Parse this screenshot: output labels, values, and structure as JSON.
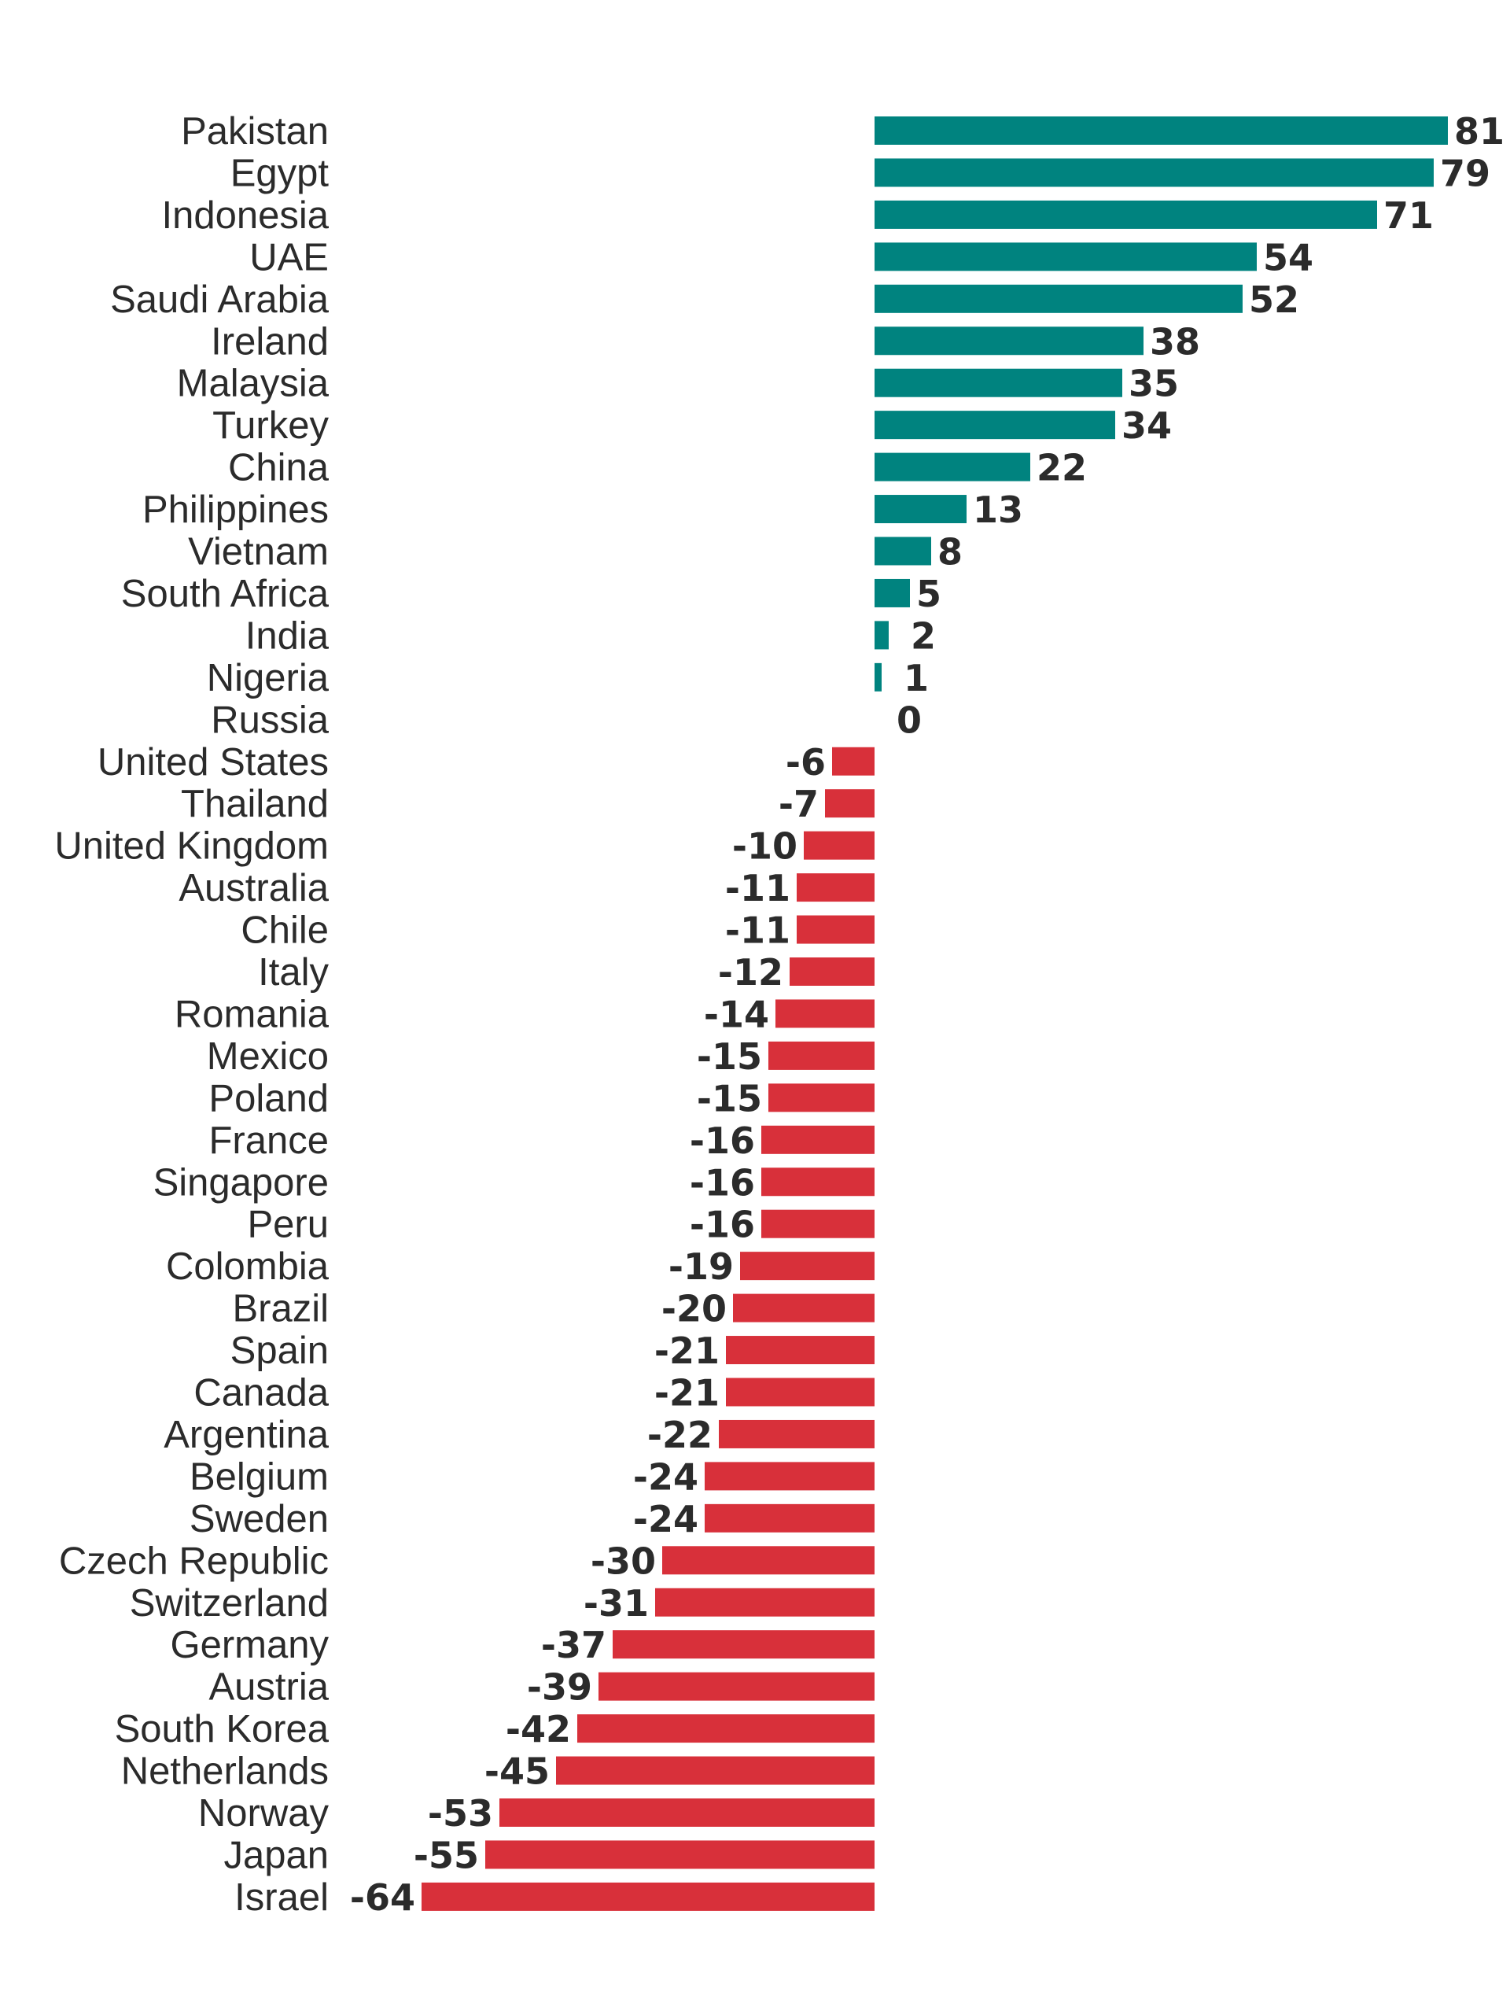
{
  "chart_data": {
    "type": "bar",
    "orientation": "horizontal",
    "title": "",
    "xlabel": "",
    "ylabel": "",
    "xlim": [
      -64,
      81
    ],
    "grid": false,
    "legend": "none",
    "colors": {
      "positive": "#00837f",
      "negative": "#d8303a",
      "text": "#2b2b2b"
    },
    "categories": [
      "Pakistan",
      "Egypt",
      "Indonesia",
      "UAE",
      "Saudi Arabia",
      "Ireland",
      "Malaysia",
      "Turkey",
      "China",
      "Philippines",
      "Vietnam",
      "South Africa",
      "India",
      "Nigeria",
      "Russia",
      "United States",
      "Thailand",
      "United Kingdom",
      "Australia",
      "Chile",
      "Italy",
      "Romania",
      "Mexico",
      "Poland",
      "France",
      "Singapore",
      "Peru",
      "Colombia",
      "Brazil",
      "Spain",
      "Canada",
      "Argentina",
      "Belgium",
      "Sweden",
      "Czech Republic",
      "Switzerland",
      "Germany",
      "Austria",
      "South Korea",
      "Netherlands",
      "Norway",
      "Japan",
      "Israel"
    ],
    "values": [
      81,
      79,
      71,
      54,
      52,
      38,
      35,
      34,
      22,
      13,
      8,
      5,
      2,
      1,
      0,
      -6,
      -7,
      -10,
      -11,
      -11,
      -12,
      -14,
      -15,
      -15,
      -16,
      -16,
      -16,
      -19,
      -20,
      -21,
      -21,
      -22,
      -24,
      -24,
      -30,
      -31,
      -37,
      -39,
      -42,
      -45,
      -53,
      -55,
      -64
    ],
    "value_labels": [
      "81",
      "79",
      "71",
      "54",
      "52",
      "38",
      "35",
      "34",
      "22",
      "13",
      "8",
      "5",
      "2",
      "1",
      "0",
      "-6",
      "-7",
      "-10",
      "-11",
      "-11",
      "-12",
      "-14",
      "-15",
      "-15",
      "-16",
      "-16",
      "-16",
      "-19",
      "-20",
      "-21",
      "-21",
      "-22",
      "-24",
      "-24",
      "-30",
      "-31",
      "-37",
      "-39",
      "-42",
      "-45",
      "-53",
      "-55",
      "-64"
    ]
  }
}
